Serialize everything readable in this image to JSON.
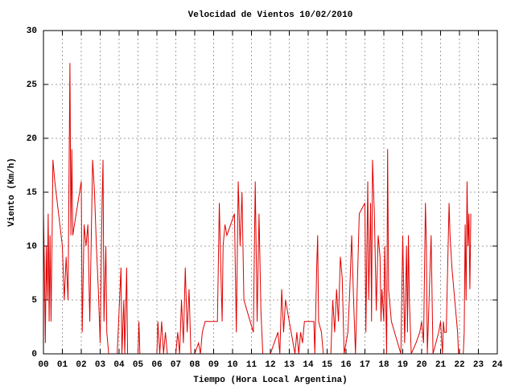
{
  "chart_data": {
    "type": "line",
    "title": "Velocidad de Vientos 10/02/2010",
    "xlabel": "Tiempo (Hora Local Argentina)",
    "ylabel": "Viento (Km/h)",
    "color": "#e00000",
    "grid": true,
    "xlim": [
      0,
      24
    ],
    "ylim": [
      0,
      30
    ],
    "xticks": [
      {
        "value": 0,
        "label": "00"
      },
      {
        "value": 1,
        "label": "01"
      },
      {
        "value": 2,
        "label": "02"
      },
      {
        "value": 3,
        "label": "03"
      },
      {
        "value": 4,
        "label": "04"
      },
      {
        "value": 5,
        "label": "05"
      },
      {
        "value": 6,
        "label": "06"
      },
      {
        "value": 7,
        "label": "07"
      },
      {
        "value": 8,
        "label": "08"
      },
      {
        "value": 9,
        "label": "09"
      },
      10,
      11,
      12,
      13,
      14,
      15,
      16,
      17,
      18,
      19,
      20,
      21,
      22,
      23,
      24
    ],
    "yticks": [
      0,
      5,
      10,
      15,
      20,
      25,
      30
    ],
    "x": [
      0,
      0.05,
      0.1,
      0.15,
      0.2,
      0.25,
      0.3,
      0.35,
      0.4,
      0.45,
      0.5,
      0.6,
      1.0,
      1.1,
      1.2,
      1.3,
      1.4,
      1.45,
      1.5,
      1.55,
      2.0,
      2.05,
      2.15,
      2.25,
      2.35,
      2.45,
      2.6,
      2.7,
      2.8,
      2.9,
      3.0,
      3.1,
      3.15,
      3.2,
      3.3,
      3.35,
      3.45,
      3.9,
      4.1,
      4.15,
      4.25,
      4.3,
      4.4,
      4.45,
      5.0,
      5.05,
      5.1,
      6.0,
      6.05,
      6.15,
      6.25,
      6.35,
      6.45,
      6.55,
      7.0,
      7.1,
      7.2,
      7.3,
      7.4,
      7.5,
      7.6,
      7.7,
      7.8,
      8.0,
      8.2,
      8.3,
      8.4,
      8.55,
      9.2,
      9.3,
      9.35,
      9.45,
      9.5,
      9.6,
      9.7,
      10.1,
      10.2,
      10.3,
      10.4,
      10.5,
      10.6,
      11.1,
      11.2,
      11.3,
      11.4,
      11.5,
      11.6,
      12.0,
      12.4,
      12.5,
      12.6,
      12.7,
      12.8,
      13.3,
      13.4,
      13.5,
      13.6,
      13.7,
      13.8,
      14.3,
      14.35,
      14.45,
      14.5,
      14.55,
      14.7,
      14.8,
      15.2,
      15.3,
      15.4,
      15.5,
      15.6,
      15.7,
      15.8,
      15.9,
      16.1,
      16.2,
      16.3,
      16.4,
      16.5,
      16.7,
      17.0,
      17.05,
      17.15,
      17.2,
      17.3,
      17.35,
      17.4,
      17.5,
      17.6,
      17.7,
      17.8,
      17.85,
      17.9,
      18.0,
      18.05,
      18.15,
      18.2,
      18.25,
      18.4,
      18.9,
      19.0,
      19.1,
      19.2,
      19.25,
      19.3,
      19.35,
      19.45,
      19.7,
      19.9,
      20.0,
      20.1,
      20.2,
      20.25,
      20.3,
      20.5,
      20.6,
      20.9,
      21.0,
      21.1,
      21.15,
      21.2,
      21.3,
      21.45,
      21.5,
      21.6,
      21.9,
      21.95,
      22.2,
      22.25,
      22.3,
      22.35,
      22.4,
      22.45,
      22.5,
      22.55,
      22.6
    ],
    "values": [
      13,
      8,
      1,
      10,
      5,
      13,
      3,
      11,
      3,
      10,
      18,
      16,
      10,
      5,
      9,
      5,
      27,
      11,
      19,
      11,
      16,
      2,
      12,
      10,
      12,
      3,
      18,
      15,
      10,
      6,
      1,
      14,
      18,
      3,
      10,
      2,
      0,
      0,
      8,
      0,
      5,
      0,
      8,
      0,
      0,
      3,
      0,
      0,
      3,
      0,
      3,
      0,
      2,
      0,
      0,
      2,
      0,
      5,
      1,
      8,
      2,
      6,
      0,
      0,
      1,
      0,
      2,
      3,
      3,
      14,
      10,
      3,
      10,
      12,
      11,
      13,
      2,
      16,
      10,
      15,
      5,
      2,
      16,
      3,
      13,
      4,
      0,
      0,
      2,
      0,
      6,
      2,
      5,
      0,
      2,
      0,
      2,
      1,
      3,
      3,
      0,
      8,
      11,
      3,
      2,
      0,
      0,
      5,
      2,
      6,
      3,
      9,
      7,
      0,
      2,
      6,
      11,
      5,
      0,
      13,
      14,
      2,
      16,
      5,
      14,
      3,
      18,
      13,
      4,
      11,
      9,
      3,
      6,
      3,
      10,
      0,
      19,
      6,
      3,
      0,
      11,
      1,
      10,
      2,
      11,
      5,
      0,
      1,
      2,
      3,
      1,
      14,
      10,
      0,
      11,
      0,
      2,
      3,
      0,
      3,
      2,
      2,
      14,
      11,
      8,
      2,
      0,
      0,
      2,
      12,
      5,
      16,
      10,
      13,
      6,
      13
    ]
  }
}
